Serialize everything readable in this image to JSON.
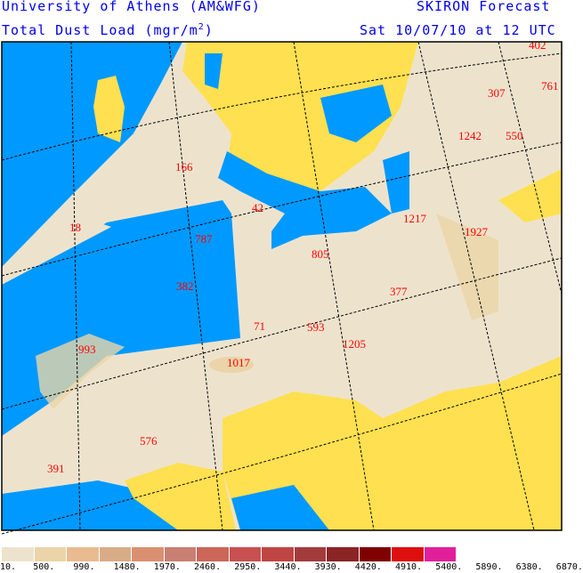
{
  "header": {
    "institution": "University of Athens (AM&WFG)",
    "model": "SKIRON Forecast",
    "variable": "Total Dust Load (mgr/m",
    "variable_sup": "2",
    "variable_end": ")",
    "valid_time": "Sat 10/07/10 at 12 UTC"
  },
  "colors": {
    "ocean": "#0099ff",
    "land_nodust": "#ffe050",
    "dust_low": "#ede3cd",
    "accent_text": "#0000ee",
    "max_labels": "#ff0000"
  },
  "map_labels": [
    "166",
    "42",
    "18",
    "787",
    "382",
    "805",
    "1217",
    "1927",
    "377",
    "71",
    "593",
    "1205",
    "993",
    "1017",
    "576",
    "391",
    "307",
    "761",
    "1242",
    "550",
    "402"
  ],
  "legend": {
    "colors": [
      "#ede3cd",
      "#ead4a8",
      "#e8bb91",
      "#d9ac88",
      "#da9070",
      "#c97f72",
      "#cb6659",
      "#c95050",
      "#bf4543",
      "#a33b3c",
      "#8b2424",
      "#800000",
      "#dd0f0f",
      "#e21f9b"
    ],
    "ticks": [
      "10.",
      "500.",
      "990.",
      "1480.",
      "1970.",
      "2460.",
      "2950.",
      "3440.",
      "3930.",
      "4420.",
      "4910.",
      "5400.",
      "5890.",
      "6380.",
      "6870."
    ]
  }
}
